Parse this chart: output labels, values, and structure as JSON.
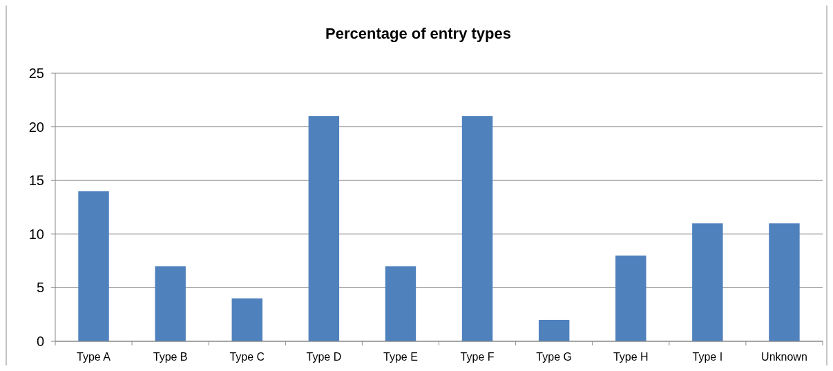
{
  "chart_data": {
    "type": "bar",
    "title": "Percentage of entry types",
    "categories": [
      "Type A",
      "Type B",
      "Type C",
      "Type D",
      "Type E",
      "Type F",
      "Type G",
      "Type H",
      "Type I",
      "Unknown"
    ],
    "values": [
      14,
      7,
      4,
      21,
      7,
      21,
      2,
      8,
      11,
      11
    ],
    "color": "#4f81bd",
    "ylim": [
      0,
      25
    ],
    "yticks": [
      0,
      5,
      10,
      15,
      20,
      25
    ],
    "grid": "y"
  }
}
